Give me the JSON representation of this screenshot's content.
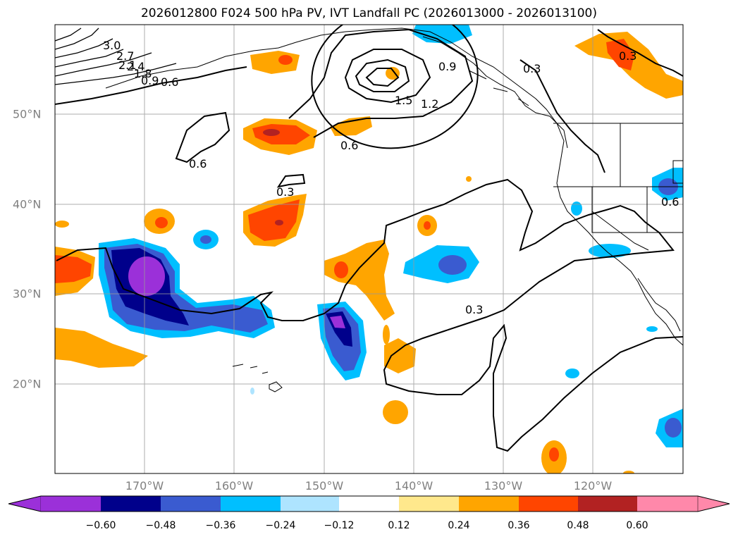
{
  "title": "2026012800 F024 500 hPa PV, IVT Landfall PC (2026013000 - 2026013100)",
  "lon_labels": [
    "170°W",
    "160°W",
    "150°W",
    "140°W",
    "130°W",
    "120°W"
  ],
  "lat_labels": [
    "50°N",
    "40°N",
    "30°N",
    "20°N"
  ],
  "contour_labels": [
    "3.0",
    "2.7",
    "2.4",
    "2.1",
    "1.8",
    "0.9",
    "0.6",
    "1.5",
    "1.2",
    "0.9",
    "0.3",
    "0.6",
    "0.6",
    "0.3",
    "0.3",
    "0.3",
    "0.6"
  ],
  "colorbar": {
    "ticks": [
      "−0.60",
      "−0.48",
      "−0.36",
      "−0.24",
      "−0.12",
      "0.12",
      "0.24",
      "0.36",
      "0.48",
      "0.60"
    ],
    "colors": [
      "#9b30d9",
      "#00008b",
      "#3a5bd0",
      "#00bfff",
      "#aee4ff",
      "#ffffff",
      "#ffe88c",
      "#ffa500",
      "#ff4500",
      "#b22222",
      "#ff88aa"
    ]
  },
  "colors": {
    "grid": "#999999",
    "axis_label": "#808080"
  }
}
